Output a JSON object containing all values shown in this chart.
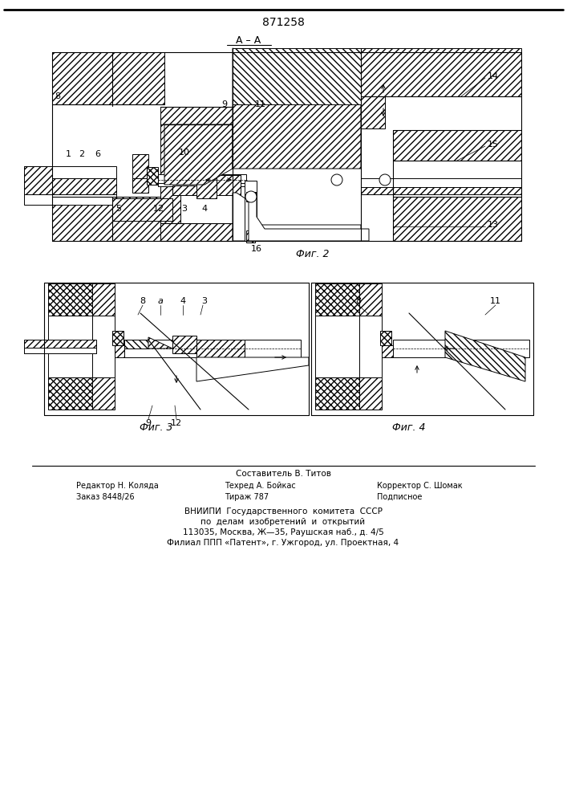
{
  "patent_number": "871258",
  "fig2_label": "Фиг. 2",
  "fig3_label": "Фиг. 3",
  "fig4_label": "Фиг. 4",
  "footer_line1": "Составитель В. Титов",
  "footer_line2_left": "Редактор Н. Коляда",
  "footer_line2_mid": "Техред А. Бойкас",
  "footer_line2_right": "Корректор С. Шомак",
  "footer_line3_left": "Заказ 8448/26",
  "footer_line3_mid": "Тираж 787",
  "footer_line3_right": "Подписное",
  "footer_line4": "ВНИИПИ  Государственного  комитета  СССР",
  "footer_line5": "по  делам  изобретений  и  открытий",
  "footer_line6": "113035, Москва, Ж—35, Раушская наб., д. 4/5",
  "footer_line7": "Филиал ППП «Патент», г. Ужгород, ул. Проектная, 4",
  "bg_color": "#ffffff"
}
